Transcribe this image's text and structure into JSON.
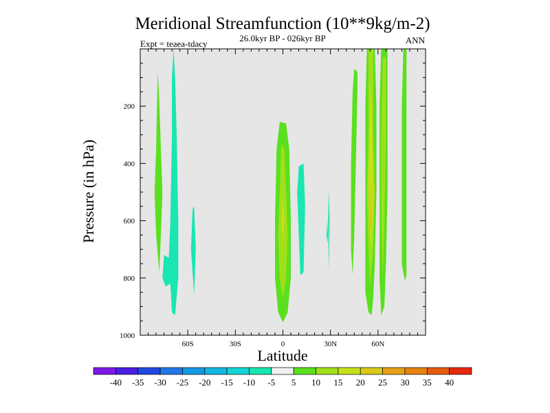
{
  "chart_data": {
    "type": "heatmap",
    "title": "Meridional Streamfunction (10**9kg/m-2)",
    "subtitle": "26.0kyr BP - 026kyr BP",
    "left_annotation": "Expt = teaea-tdacy",
    "right_annotation": "ANN",
    "xlabel": "Latitude",
    "ylabel": "Pressure (in hPa)",
    "xlim": [
      -90,
      90
    ],
    "ylim": [
      1000,
      0
    ],
    "plot_background": "#e6e6e6",
    "x_ticks": [
      {
        "value": -60,
        "label": "60S"
      },
      {
        "value": -30,
        "label": "30S"
      },
      {
        "value": 0,
        "label": "0"
      },
      {
        "value": 30,
        "label": "30N"
      },
      {
        "value": 60,
        "label": "60N"
      }
    ],
    "y_ticks": [
      {
        "value": 200,
        "label": "200"
      },
      {
        "value": 400,
        "label": "400"
      },
      {
        "value": 600,
        "label": "600"
      },
      {
        "value": 800,
        "label": "800"
      },
      {
        "value": 1000,
        "label": "1000"
      }
    ],
    "colorbar": {
      "colors": [
        "#7d19e6",
        "#4a1ee0",
        "#2148e0",
        "#1f78e6",
        "#139ae6",
        "#10b6e0",
        "#14d4d4",
        "#19e6b0",
        "#f0f0f0",
        "#5ae01e",
        "#a0e01a",
        "#c8e01a",
        "#d7c81a",
        "#e6a019",
        "#e6820f",
        "#e65a0f",
        "#e6280f"
      ],
      "labels": [
        "-40",
        "-35",
        "-30",
        "-25",
        "-20",
        "-15",
        "-10",
        "-5",
        "5",
        "10",
        "15",
        "20",
        "25",
        "30",
        "35",
        "40"
      ]
    },
    "regions": [
      {
        "id": "sh-high-pos",
        "fill": "#5ae01e",
        "value": 10,
        "points": [
          [
            -79,
            80
          ],
          [
            -78,
            180
          ],
          [
            -77,
            350
          ],
          [
            -76,
            500
          ],
          [
            -77,
            650
          ],
          [
            -78,
            780
          ],
          [
            -80,
            650
          ],
          [
            -81,
            500
          ],
          [
            -80,
            350
          ]
        ]
      },
      {
        "id": "sh-neg-strip",
        "fill": "#19e6b0",
        "value": -5,
        "points": [
          [
            -69,
            0
          ],
          [
            -68,
            100
          ],
          [
            -67,
            300
          ],
          [
            -66,
            600
          ],
          [
            -66,
            800
          ],
          [
            -68,
            930
          ],
          [
            -70,
            920
          ],
          [
            -71,
            820
          ],
          [
            -74,
            830
          ],
          [
            -76,
            800
          ],
          [
            -75,
            720
          ],
          [
            -72,
            730
          ],
          [
            -71,
            600
          ],
          [
            -70,
            300
          ],
          [
            -70,
            100
          ]
        ]
      },
      {
        "id": "sh-neg-small",
        "fill": "#19e6b0",
        "value": -5,
        "points": [
          [
            -56,
            550
          ],
          [
            -55,
            700
          ],
          [
            -56,
            860
          ],
          [
            -58,
            700
          ],
          [
            -57,
            560
          ]
        ]
      },
      {
        "id": "eq-pos-outer",
        "fill": "#5ae01e",
        "value": 10,
        "points": [
          [
            -2,
            255
          ],
          [
            2,
            260
          ],
          [
            4,
            350
          ],
          [
            5,
            600
          ],
          [
            5,
            800
          ],
          [
            3,
            920
          ],
          [
            0,
            955
          ],
          [
            -3,
            920
          ],
          [
            -5,
            800
          ],
          [
            -5,
            600
          ],
          [
            -4,
            350
          ]
        ]
      },
      {
        "id": "eq-pos-mid",
        "fill": "#a0e01a",
        "value": 15,
        "points": [
          [
            -1,
            330
          ],
          [
            1,
            350
          ],
          [
            2,
            500
          ],
          [
            3,
            650
          ],
          [
            2,
            800
          ],
          [
            0,
            870
          ],
          [
            -2,
            800
          ],
          [
            -3,
            650
          ],
          [
            -2,
            500
          ]
        ]
      },
      {
        "id": "eq-pos-core",
        "fill": "#c8e01a",
        "value": 20,
        "points": [
          [
            0,
            520
          ],
          [
            1,
            600
          ],
          [
            0,
            660
          ],
          [
            -1,
            600
          ]
        ]
      },
      {
        "id": "nh-neg-1",
        "fill": "#19e6b0",
        "value": -5,
        "points": [
          [
            10,
            410
          ],
          [
            13,
            400
          ],
          [
            14,
            550
          ],
          [
            13,
            780
          ],
          [
            11,
            790
          ],
          [
            10,
            650
          ],
          [
            9,
            500
          ]
        ]
      },
      {
        "id": "nh-neg-2",
        "fill": "#19e6b0",
        "value": -5,
        "points": [
          [
            29,
            490
          ],
          [
            29.5,
            600
          ],
          [
            29,
            780
          ],
          [
            28.5,
            600
          ]
        ]
      },
      {
        "id": "nh-neg-3",
        "fill": "#19e6b0",
        "value": -5,
        "points": [
          [
            28,
            600
          ],
          [
            28.5,
            650
          ],
          [
            28,
            680
          ],
          [
            27.5,
            650
          ]
        ]
      },
      {
        "id": "nh-pos-1",
        "fill": "#5ae01e",
        "value": 10,
        "points": [
          [
            45,
            70
          ],
          [
            47,
            80
          ],
          [
            47,
            150
          ],
          [
            46,
            400
          ],
          [
            45,
            650
          ],
          [
            44,
            790
          ],
          [
            43,
            700
          ],
          [
            43,
            400
          ],
          [
            44,
            150
          ]
        ]
      },
      {
        "id": "nh-pos-main",
        "fill": "#5ae01e",
        "value": 10,
        "points": [
          [
            53,
            0
          ],
          [
            58,
            0
          ],
          [
            59,
            200
          ],
          [
            59,
            500
          ],
          [
            58,
            750
          ],
          [
            57,
            870
          ],
          [
            56,
            930
          ],
          [
            54,
            920
          ],
          [
            52,
            850
          ],
          [
            52,
            500
          ],
          [
            52,
            200
          ]
        ]
      },
      {
        "id": "nh-pos-main-mid",
        "fill": "#a0e01a",
        "value": 15,
        "points": [
          [
            54,
            0
          ],
          [
            57,
            0
          ],
          [
            57,
            300
          ],
          [
            58,
            500
          ],
          [
            57,
            700
          ],
          [
            55,
            830
          ],
          [
            54,
            700
          ],
          [
            53,
            500
          ],
          [
            54,
            300
          ]
        ]
      },
      {
        "id": "nh-pos-main-core",
        "fill": "#c8e01a",
        "value": 20,
        "points": [
          [
            55,
            120
          ],
          [
            56,
            200
          ],
          [
            57,
            450
          ],
          [
            57,
            550
          ],
          [
            56,
            700
          ],
          [
            55,
            650
          ],
          [
            54,
            450
          ],
          [
            55,
            200
          ]
        ]
      },
      {
        "id": "nh-pos-main-peak",
        "fill": "#d7c81a",
        "value": 25,
        "points": [
          [
            55.5,
            450
          ],
          [
            56,
            500
          ],
          [
            56,
            600
          ],
          [
            55.5,
            650
          ],
          [
            55,
            600
          ],
          [
            55,
            500
          ]
        ]
      },
      {
        "id": "nh-pos-3",
        "fill": "#5ae01e",
        "value": 10,
        "points": [
          [
            62,
            0
          ],
          [
            66,
            0
          ],
          [
            66,
            200
          ],
          [
            66,
            500
          ],
          [
            65,
            750
          ],
          [
            64,
            900
          ],
          [
            62,
            930
          ],
          [
            61,
            800
          ],
          [
            61,
            500
          ],
          [
            61,
            200
          ]
        ]
      },
      {
        "id": "nh-pos-3-mid",
        "fill": "#a0e01a",
        "value": 15,
        "points": [
          [
            63,
            30
          ],
          [
            65,
            30
          ],
          [
            65,
            300
          ],
          [
            64,
            600
          ],
          [
            63,
            800
          ],
          [
            62,
            600
          ],
          [
            62,
            300
          ]
        ]
      },
      {
        "id": "nh-pos-4",
        "fill": "#5ae01e",
        "value": 10,
        "points": [
          [
            76,
            0
          ],
          [
            78,
            0
          ],
          [
            78,
            200
          ],
          [
            78,
            500
          ],
          [
            78,
            790
          ],
          [
            77,
            810
          ],
          [
            75,
            750
          ],
          [
            75,
            500
          ],
          [
            75,
            200
          ]
        ]
      }
    ]
  }
}
